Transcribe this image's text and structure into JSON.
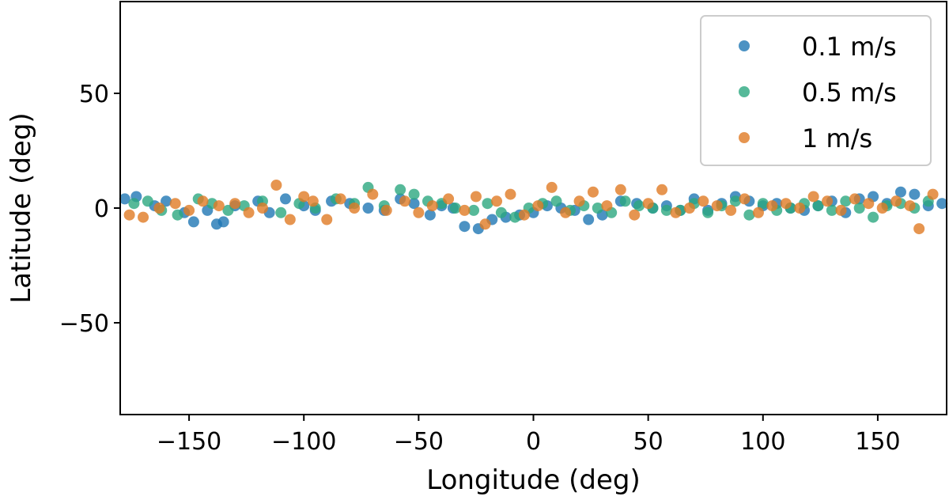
{
  "chart_data": {
    "type": "scatter",
    "title": "",
    "xlabel": "Longitude (deg)",
    "ylabel": "Latitude (deg)",
    "xlim": [
      -180,
      180
    ],
    "ylim": [
      -90,
      90
    ],
    "xticks": [
      -150,
      -100,
      -50,
      0,
      50,
      100,
      150
    ],
    "xtick_labels": [
      "−150",
      "−100",
      "−50",
      "0",
      "50",
      "100",
      "150"
    ],
    "yticks": [
      -50,
      0,
      50
    ],
    "ytick_labels": [
      "−50",
      "0",
      "50"
    ],
    "grid": false,
    "legend_position": "upper right",
    "series": [
      {
        "name": "0.1 m/s",
        "color": "#1f77b4",
        "x": [
          -178,
          -173,
          -165,
          -160,
          -152,
          -148,
          -142,
          -138,
          -135,
          -130,
          -120,
          -115,
          -108,
          -100,
          -95,
          -88,
          -80,
          -72,
          -65,
          -58,
          -52,
          -45,
          -40,
          -35,
          -30,
          -24,
          -18,
          -12,
          -6,
          0,
          6,
          12,
          18,
          24,
          30,
          38,
          45,
          52,
          58,
          64,
          70,
          76,
          82,
          88,
          94,
          100,
          106,
          112,
          118,
          124,
          130,
          136,
          142,
          148,
          154,
          160,
          166,
          172,
          178
        ],
        "y": [
          4,
          5,
          1,
          3,
          -2,
          -6,
          -1,
          -7,
          -6,
          1,
          3,
          -2,
          4,
          1,
          -1,
          3,
          2,
          0,
          -1,
          4,
          2,
          -3,
          1,
          0,
          -8,
          -9,
          -5,
          -4,
          -3,
          -2,
          1,
          0,
          -1,
          -5,
          -3,
          3,
          2,
          0,
          1,
          -1,
          4,
          -1,
          2,
          5,
          3,
          1,
          2,
          0,
          -1,
          1,
          3,
          -2,
          4,
          5,
          2,
          7,
          6,
          1,
          2
        ]
      },
      {
        "name": "0.5 m/s",
        "color": "#2ca77f",
        "x": [
          -174,
          -168,
          -162,
          -155,
          -146,
          -140,
          -133,
          -126,
          -118,
          -110,
          -102,
          -95,
          -86,
          -78,
          -72,
          -65,
          -58,
          -52,
          -46,
          -40,
          -34,
          -26,
          -20,
          -14,
          -8,
          -2,
          4,
          10,
          16,
          22,
          28,
          34,
          40,
          46,
          52,
          58,
          64,
          70,
          76,
          82,
          88,
          94,
          100,
          106,
          112,
          118,
          124,
          130,
          136,
          142,
          148,
          154,
          160,
          166,
          172
        ],
        "y": [
          2,
          3,
          -1,
          -3,
          4,
          2,
          -1,
          1,
          3,
          -2,
          2,
          0,
          4,
          2,
          9,
          1,
          8,
          6,
          3,
          2,
          0,
          -1,
          2,
          -2,
          -4,
          0,
          2,
          3,
          -1,
          1,
          0,
          -2,
          3,
          1,
          0,
          -1,
          -1,
          2,
          -2,
          1,
          3,
          -3,
          2,
          -1,
          0,
          2,
          1,
          -1,
          3,
          0,
          -4,
          1,
          2,
          0,
          3
        ]
      },
      {
        "name": "1 m/s",
        "color": "#e07b24",
        "x": [
          -176,
          -170,
          -163,
          -156,
          -150,
          -144,
          -137,
          -130,
          -124,
          -118,
          -112,
          -106,
          -100,
          -96,
          -90,
          -84,
          -78,
          -70,
          -64,
          -56,
          -50,
          -44,
          -37,
          -30,
          -25,
          -21,
          -16,
          -10,
          -4,
          2,
          8,
          14,
          20,
          26,
          32,
          38,
          44,
          50,
          56,
          62,
          68,
          74,
          80,
          86,
          92,
          98,
          104,
          110,
          116,
          122,
          128,
          134,
          140,
          146,
          152,
          158,
          164,
          168,
          174
        ],
        "y": [
          -3,
          -4,
          0,
          2,
          -1,
          3,
          1,
          2,
          -2,
          0,
          10,
          -5,
          5,
          3,
          -5,
          4,
          0,
          6,
          -1,
          3,
          -2,
          1,
          4,
          -1,
          5,
          -7,
          3,
          6,
          -3,
          1,
          9,
          -2,
          3,
          7,
          1,
          8,
          -3,
          2,
          8,
          -2,
          0,
          3,
          1,
          -1,
          4,
          -2,
          1,
          2,
          0,
          5,
          3,
          -1,
          4,
          2,
          0,
          3,
          1,
          -9,
          6
        ]
      }
    ]
  }
}
